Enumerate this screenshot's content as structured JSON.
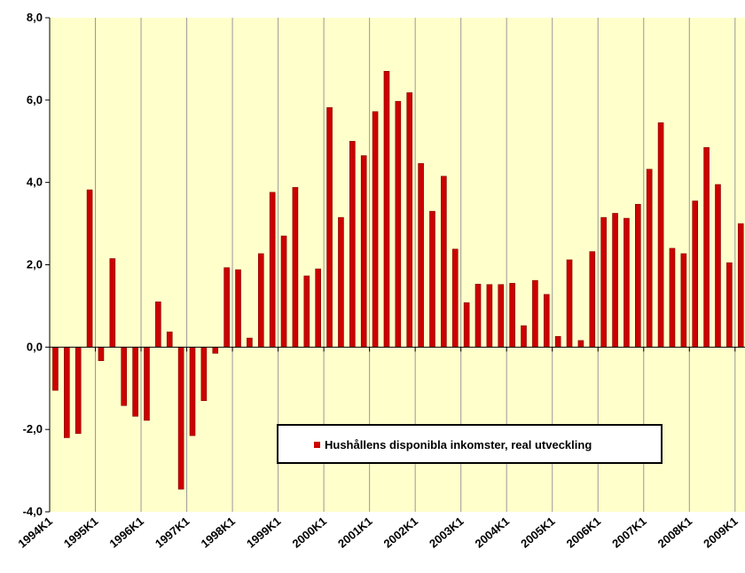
{
  "chart_data": {
    "type": "bar",
    "categories": [
      "1994K1",
      null,
      null,
      null,
      "1995K1",
      null,
      null,
      null,
      "1996K1",
      null,
      null,
      null,
      "1997K1",
      null,
      null,
      null,
      "1998K1",
      null,
      null,
      null,
      "1999K1",
      null,
      null,
      null,
      "2000K1",
      null,
      null,
      null,
      "2001K1",
      null,
      null,
      null,
      "2002K1",
      null,
      null,
      null,
      "2003K1",
      null,
      null,
      null,
      "2004K1",
      null,
      null,
      null,
      "2005K1",
      null,
      null,
      null,
      "2006K1",
      null,
      null,
      null,
      "2007K1",
      null,
      null,
      null,
      "2008K1",
      null,
      null,
      null,
      "2009K1"
    ],
    "series": [
      {
        "name": "Hushållens disponibla inkomster, real utveckling",
        "color": "#cc0000",
        "values": [
          -1.05,
          -2.2,
          -2.1,
          3.82,
          -0.33,
          2.15,
          -1.42,
          -1.68,
          -1.78,
          1.1,
          0.37,
          -3.45,
          -2.15,
          -1.3,
          -0.15,
          1.93,
          1.88,
          0.22,
          2.27,
          3.76,
          2.7,
          3.88,
          1.73,
          1.9,
          5.82,
          3.15,
          5.0,
          4.65,
          5.72,
          6.7,
          5.97,
          6.18,
          4.46,
          3.3,
          4.15,
          2.38,
          1.08,
          1.53,
          1.52,
          1.52,
          1.55,
          0.52,
          1.62,
          1.28,
          0.26,
          2.12,
          0.16,
          2.32,
          3.15,
          3.25,
          3.13,
          3.47,
          4.32,
          5.45,
          2.4,
          2.27,
          3.55,
          4.85,
          3.95,
          2.05,
          3.0
        ]
      }
    ],
    "ylim": [
      -4,
      8
    ],
    "yticks": [
      {
        "value": -4,
        "label": "-4,0"
      },
      {
        "value": -2,
        "label": "-2,0"
      },
      {
        "value": 0,
        "label": "0,0"
      },
      {
        "value": 2,
        "label": "2,0"
      },
      {
        "value": 4,
        "label": "4,0"
      },
      {
        "value": 6,
        "label": "6,0"
      },
      {
        "value": 8,
        "label": "8,0"
      }
    ],
    "legend": "bottom-center"
  }
}
